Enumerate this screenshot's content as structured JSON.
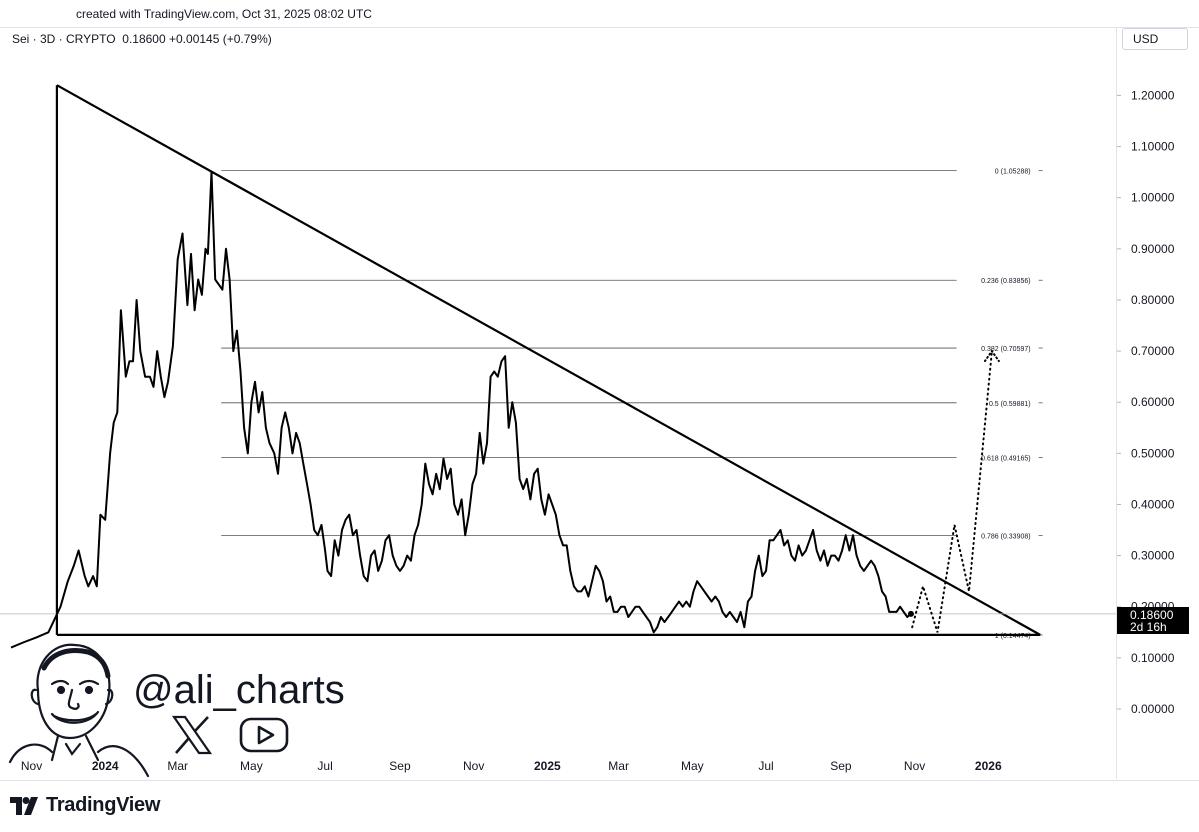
{
  "header": {
    "created_text": "created with TradingView.com, Oct 31, 2025 08:02 UTC",
    "symbol_text": "Sei · 3D · CRYPTO",
    "price": "0.18600",
    "change": "+0.00145 (+0.79%)",
    "currency": "USD"
  },
  "watermark": {
    "handle": "@ali_charts",
    "icons": [
      "x-logo-icon",
      "youtube-icon"
    ],
    "avatar": "caricature-avatar"
  },
  "footer": {
    "brand": "TradingView",
    "brand_icon": "tradingview-logo-icon"
  },
  "price_tag": {
    "value": "0.18600",
    "countdown": "2d 16h",
    "color": "#000000",
    "text_color": "#ffffff"
  },
  "chart_data": {
    "type": "line",
    "ylim": [
      -0.09,
      1.4
    ],
    "xlim": [
      "2023-10-15",
      "2026-04-01"
    ],
    "y_ticks": [
      "0.00000",
      "0.10000",
      "0.20000",
      "0.30000",
      "0.40000",
      "0.50000",
      "0.60000",
      "0.70000",
      "0.80000",
      "0.90000",
      "1.00000",
      "1.10000",
      "1.20000"
    ],
    "x_ticks": [
      {
        "label": "Nov",
        "date": "2023-11-01"
      },
      {
        "label": "2024",
        "date": "2024-01-01",
        "bold": true
      },
      {
        "label": "Mar",
        "date": "2024-03-01"
      },
      {
        "label": "May",
        "date": "2024-05-01"
      },
      {
        "label": "Jul",
        "date": "2024-07-01"
      },
      {
        "label": "Sep",
        "date": "2024-09-01"
      },
      {
        "label": "Nov",
        "date": "2024-11-01"
      },
      {
        "label": "2025",
        "date": "2025-01-01",
        "bold": true
      },
      {
        "label": "Mar",
        "date": "2025-03-01"
      },
      {
        "label": "May",
        "date": "2025-05-01"
      },
      {
        "label": "Jul",
        "date": "2025-07-01"
      },
      {
        "label": "Sep",
        "date": "2025-09-01"
      },
      {
        "label": "Nov",
        "date": "2025-11-01"
      },
      {
        "label": "2026",
        "date": "2026-01-01",
        "bold": true
      }
    ],
    "series": [
      {
        "line_color": "#000000",
        "points": [
          [
            "2023-10-15",
            0.12
          ],
          [
            "2023-10-25",
            0.13
          ],
          [
            "2023-11-05",
            0.14
          ],
          [
            "2023-11-15",
            0.15
          ],
          [
            "2023-11-25",
            0.2
          ],
          [
            "2023-12-01",
            0.25
          ],
          [
            "2023-12-06",
            0.28
          ],
          [
            "2023-12-10",
            0.31
          ],
          [
            "2023-12-15",
            0.26
          ],
          [
            "2023-12-18",
            0.24
          ],
          [
            "2023-12-22",
            0.26
          ],
          [
            "2023-12-25",
            0.24
          ],
          [
            "2023-12-28",
            0.38
          ],
          [
            "2024-01-01",
            0.37
          ],
          [
            "2024-01-05",
            0.5
          ],
          [
            "2024-01-08",
            0.56
          ],
          [
            "2024-01-11",
            0.58
          ],
          [
            "2024-01-14",
            0.78
          ],
          [
            "2024-01-18",
            0.65
          ],
          [
            "2024-01-21",
            0.68
          ],
          [
            "2024-01-24",
            0.68
          ],
          [
            "2024-01-27",
            0.8
          ],
          [
            "2024-01-30",
            0.7
          ],
          [
            "2024-02-03",
            0.65
          ],
          [
            "2024-02-07",
            0.65
          ],
          [
            "2024-02-10",
            0.63
          ],
          [
            "2024-02-13",
            0.7
          ],
          [
            "2024-02-16",
            0.65
          ],
          [
            "2024-02-19",
            0.61
          ],
          [
            "2024-02-22",
            0.64
          ],
          [
            "2024-02-26",
            0.71
          ],
          [
            "2024-03-01",
            0.88
          ],
          [
            "2024-03-05",
            0.93
          ],
          [
            "2024-03-09",
            0.79
          ],
          [
            "2024-03-12",
            0.89
          ],
          [
            "2024-03-15",
            0.78
          ],
          [
            "2024-03-18",
            0.84
          ],
          [
            "2024-03-21",
            0.81
          ],
          [
            "2024-03-24",
            0.9
          ],
          [
            "2024-03-26",
            0.89
          ],
          [
            "2024-03-29",
            1.05
          ],
          [
            "2024-04-01",
            0.84
          ],
          [
            "2024-04-04",
            0.83
          ],
          [
            "2024-04-07",
            0.82
          ],
          [
            "2024-04-10",
            0.9
          ],
          [
            "2024-04-13",
            0.84
          ],
          [
            "2024-04-16",
            0.7
          ],
          [
            "2024-04-19",
            0.74
          ],
          [
            "2024-04-22",
            0.66
          ],
          [
            "2024-04-25",
            0.55
          ],
          [
            "2024-04-28",
            0.5
          ],
          [
            "2024-05-01",
            0.6
          ],
          [
            "2024-05-04",
            0.64
          ],
          [
            "2024-05-07",
            0.58
          ],
          [
            "2024-05-10",
            0.62
          ],
          [
            "2024-05-13",
            0.55
          ],
          [
            "2024-05-16",
            0.52
          ],
          [
            "2024-05-20",
            0.5
          ],
          [
            "2024-05-23",
            0.46
          ],
          [
            "2024-05-26",
            0.55
          ],
          [
            "2024-05-29",
            0.58
          ],
          [
            "2024-06-01",
            0.55
          ],
          [
            "2024-06-04",
            0.5
          ],
          [
            "2024-06-07",
            0.54
          ],
          [
            "2024-06-10",
            0.52
          ],
          [
            "2024-06-13",
            0.48
          ],
          [
            "2024-06-16",
            0.44
          ],
          [
            "2024-06-19",
            0.4
          ],
          [
            "2024-06-22",
            0.35
          ],
          [
            "2024-06-25",
            0.34
          ],
          [
            "2024-06-28",
            0.36
          ],
          [
            "2024-07-01",
            0.31
          ],
          [
            "2024-07-03",
            0.27
          ],
          [
            "2024-07-06",
            0.26
          ],
          [
            "2024-07-09",
            0.33
          ],
          [
            "2024-07-12",
            0.3
          ],
          [
            "2024-07-15",
            0.35
          ],
          [
            "2024-07-18",
            0.37
          ],
          [
            "2024-07-21",
            0.38
          ],
          [
            "2024-07-24",
            0.34
          ],
          [
            "2024-07-27",
            0.35
          ],
          [
            "2024-07-30",
            0.3
          ],
          [
            "2024-08-02",
            0.26
          ],
          [
            "2024-08-05",
            0.25
          ],
          [
            "2024-08-08",
            0.3
          ],
          [
            "2024-08-11",
            0.31
          ],
          [
            "2024-08-14",
            0.27
          ],
          [
            "2024-08-17",
            0.29
          ],
          [
            "2024-08-20",
            0.33
          ],
          [
            "2024-08-23",
            0.34
          ],
          [
            "2024-08-26",
            0.3
          ],
          [
            "2024-08-29",
            0.28
          ],
          [
            "2024-09-01",
            0.27
          ],
          [
            "2024-09-04",
            0.28
          ],
          [
            "2024-09-07",
            0.3
          ],
          [
            "2024-09-10",
            0.29
          ],
          [
            "2024-09-13",
            0.34
          ],
          [
            "2024-09-16",
            0.36
          ],
          [
            "2024-09-19",
            0.4
          ],
          [
            "2024-09-22",
            0.48
          ],
          [
            "2024-09-25",
            0.44
          ],
          [
            "2024-09-28",
            0.42
          ],
          [
            "2024-10-01",
            0.46
          ],
          [
            "2024-10-04",
            0.43
          ],
          [
            "2024-10-07",
            0.49
          ],
          [
            "2024-10-10",
            0.45
          ],
          [
            "2024-10-13",
            0.47
          ],
          [
            "2024-10-16",
            0.4
          ],
          [
            "2024-10-19",
            0.38
          ],
          [
            "2024-10-22",
            0.41
          ],
          [
            "2024-10-25",
            0.34
          ],
          [
            "2024-10-28",
            0.38
          ],
          [
            "2024-10-31",
            0.44
          ],
          [
            "2024-11-03",
            0.46
          ],
          [
            "2024-11-06",
            0.54
          ],
          [
            "2024-11-09",
            0.48
          ],
          [
            "2024-11-12",
            0.52
          ],
          [
            "2024-11-15",
            0.65
          ],
          [
            "2024-11-18",
            0.66
          ],
          [
            "2024-11-21",
            0.65
          ],
          [
            "2024-11-24",
            0.68
          ],
          [
            "2024-11-27",
            0.69
          ],
          [
            "2024-11-30",
            0.55
          ],
          [
            "2024-12-03",
            0.6
          ],
          [
            "2024-12-06",
            0.56
          ],
          [
            "2024-12-09",
            0.45
          ],
          [
            "2024-12-12",
            0.43
          ],
          [
            "2024-12-15",
            0.45
          ],
          [
            "2024-12-18",
            0.41
          ],
          [
            "2024-12-21",
            0.46
          ],
          [
            "2024-12-24",
            0.47
          ],
          [
            "2024-12-27",
            0.41
          ],
          [
            "2024-12-30",
            0.38
          ],
          [
            "2025-01-02",
            0.42
          ],
          [
            "2025-01-05",
            0.4
          ],
          [
            "2025-01-08",
            0.38
          ],
          [
            "2025-01-11",
            0.34
          ],
          [
            "2025-01-14",
            0.32
          ],
          [
            "2025-01-17",
            0.32
          ],
          [
            "2025-01-20",
            0.27
          ],
          [
            "2025-01-23",
            0.24
          ],
          [
            "2025-01-26",
            0.23
          ],
          [
            "2025-01-29",
            0.23
          ],
          [
            "2025-02-01",
            0.24
          ],
          [
            "2025-02-04",
            0.22
          ],
          [
            "2025-02-07",
            0.25
          ],
          [
            "2025-02-10",
            0.28
          ],
          [
            "2025-02-13",
            0.27
          ],
          [
            "2025-02-16",
            0.25
          ],
          [
            "2025-02-19",
            0.21
          ],
          [
            "2025-02-22",
            0.22
          ],
          [
            "2025-02-25",
            0.19
          ],
          [
            "2025-02-28",
            0.19
          ],
          [
            "2025-03-03",
            0.2
          ],
          [
            "2025-03-06",
            0.2
          ],
          [
            "2025-03-09",
            0.18
          ],
          [
            "2025-03-12",
            0.19
          ],
          [
            "2025-03-15",
            0.2
          ],
          [
            "2025-03-18",
            0.2
          ],
          [
            "2025-03-21",
            0.19
          ],
          [
            "2025-03-24",
            0.18
          ],
          [
            "2025-03-27",
            0.17
          ],
          [
            "2025-03-30",
            0.15
          ],
          [
            "2025-04-02",
            0.16
          ],
          [
            "2025-04-05",
            0.18
          ],
          [
            "2025-04-08",
            0.17
          ],
          [
            "2025-04-11",
            0.18
          ],
          [
            "2025-04-14",
            0.19
          ],
          [
            "2025-04-17",
            0.2
          ],
          [
            "2025-04-20",
            0.21
          ],
          [
            "2025-04-23",
            0.2
          ],
          [
            "2025-04-26",
            0.21
          ],
          [
            "2025-04-29",
            0.2
          ],
          [
            "2025-05-02",
            0.23
          ],
          [
            "2025-05-05",
            0.25
          ],
          [
            "2025-05-08",
            0.24
          ],
          [
            "2025-05-11",
            0.23
          ],
          [
            "2025-05-14",
            0.22
          ],
          [
            "2025-05-17",
            0.21
          ],
          [
            "2025-05-20",
            0.22
          ],
          [
            "2025-05-23",
            0.21
          ],
          [
            "2025-05-26",
            0.19
          ],
          [
            "2025-05-29",
            0.18
          ],
          [
            "2025-06-01",
            0.19
          ],
          [
            "2025-06-04",
            0.18
          ],
          [
            "2025-06-07",
            0.17
          ],
          [
            "2025-06-10",
            0.19
          ],
          [
            "2025-06-13",
            0.16
          ],
          [
            "2025-06-16",
            0.21
          ],
          [
            "2025-06-19",
            0.22
          ],
          [
            "2025-06-22",
            0.27
          ],
          [
            "2025-06-25",
            0.3
          ],
          [
            "2025-06-28",
            0.26
          ],
          [
            "2025-07-01",
            0.27
          ],
          [
            "2025-07-04",
            0.33
          ],
          [
            "2025-07-07",
            0.33
          ],
          [
            "2025-07-10",
            0.34
          ],
          [
            "2025-07-13",
            0.35
          ],
          [
            "2025-07-16",
            0.32
          ],
          [
            "2025-07-19",
            0.33
          ],
          [
            "2025-07-22",
            0.3
          ],
          [
            "2025-07-25",
            0.29
          ],
          [
            "2025-07-28",
            0.32
          ],
          [
            "2025-07-31",
            0.3
          ],
          [
            "2025-08-03",
            0.31
          ],
          [
            "2025-08-06",
            0.33
          ],
          [
            "2025-08-09",
            0.35
          ],
          [
            "2025-08-12",
            0.31
          ],
          [
            "2025-08-15",
            0.29
          ],
          [
            "2025-08-18",
            0.31
          ],
          [
            "2025-08-21",
            0.28
          ],
          [
            "2025-08-24",
            0.3
          ],
          [
            "2025-08-27",
            0.3
          ],
          [
            "2025-08-30",
            0.29
          ],
          [
            "2025-09-02",
            0.31
          ],
          [
            "2025-09-05",
            0.34
          ],
          [
            "2025-09-08",
            0.31
          ],
          [
            "2025-09-11",
            0.34
          ],
          [
            "2025-09-14",
            0.3
          ],
          [
            "2025-09-17",
            0.28
          ],
          [
            "2025-09-20",
            0.27
          ],
          [
            "2025-09-23",
            0.28
          ],
          [
            "2025-09-26",
            0.29
          ],
          [
            "2025-09-29",
            0.28
          ],
          [
            "2025-10-02",
            0.26
          ],
          [
            "2025-10-05",
            0.23
          ],
          [
            "2025-10-08",
            0.22
          ],
          [
            "2025-10-11",
            0.19
          ],
          [
            "2025-10-14",
            0.19
          ],
          [
            "2025-10-17",
            0.19
          ],
          [
            "2025-10-20",
            0.2
          ],
          [
            "2025-10-23",
            0.19
          ],
          [
            "2025-10-26",
            0.18
          ],
          [
            "2025-10-29",
            0.186
          ]
        ]
      },
      {
        "style": "dotted",
        "points": [
          [
            "2025-10-30",
            0.16
          ],
          [
            "2025-11-08",
            0.24
          ],
          [
            "2025-11-20",
            0.15
          ],
          [
            "2025-12-04",
            0.36
          ],
          [
            "2025-12-16",
            0.23
          ],
          [
            "2026-01-04",
            0.7
          ]
        ]
      }
    ],
    "trendlines": [
      {
        "points": [
          [
            "2023-11-22",
            1.22
          ],
          [
            "2026-02-13",
            0.145
          ]
        ]
      },
      {
        "points": [
          [
            "2023-11-22",
            0.145
          ],
          [
            "2026-02-13",
            0.145
          ]
        ]
      },
      {
        "points": [
          [
            "2023-11-22",
            0.145
          ],
          [
            "2023-11-22",
            1.22
          ]
        ]
      }
    ],
    "fib_levels": [
      {
        "label": "0 (1.05288)",
        "value": 1.05288
      },
      {
        "label": "0.236 (0.83856)",
        "value": 0.83856
      },
      {
        "label": "0.382 (0.70597)",
        "value": 0.70597
      },
      {
        "label": "0.5 (0.59881)",
        "value": 0.59881
      },
      {
        "label": "0.618 (0.49165)",
        "value": 0.49165
      },
      {
        "label": "0.786 (0.33908)",
        "value": 0.33908
      },
      {
        "label": "1 (0.14474)",
        "value": 0.14474
      }
    ],
    "fib_start": "2024-04-06",
    "fib_end": "2026-02-10",
    "current_price": 0.186
  }
}
